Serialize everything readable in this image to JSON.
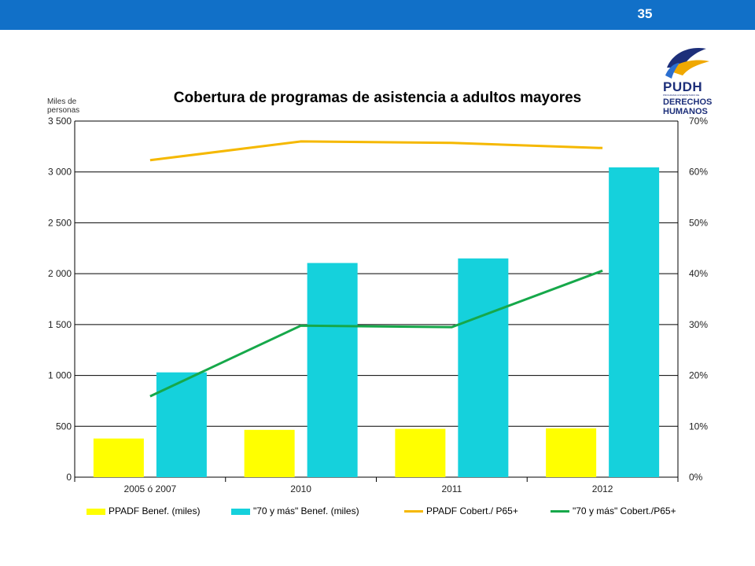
{
  "header": {
    "page_number": "35"
  },
  "logo": {
    "line1": "PUDH",
    "line2": "PROGRAMA UNIVERSITARIO DE",
    "line3": "DERECHOS",
    "line4": "HUMANOS"
  },
  "chart_data": {
    "type": "bar",
    "title": "Cobertura de programas de asistencia a adultos mayores",
    "y_unit_label": "Miles de personas",
    "categories": [
      "2005 ó 2007",
      "2010",
      "2011",
      "2012"
    ],
    "ylim": [
      0,
      3500
    ],
    "y_ticks": [
      "0",
      "500",
      "1 000",
      "1 500",
      "2 000",
      "2 500",
      "3 000",
      "3 500"
    ],
    "y2lim": [
      0,
      70
    ],
    "y2_ticks": [
      "0%",
      "10%",
      "20%",
      "30%",
      "40%",
      "50%",
      "60%",
      "70%"
    ],
    "grid": true,
    "legend_position": "bottom",
    "series": [
      {
        "name": "PPADF Benef. (miles)",
        "kind": "bar",
        "axis": "left",
        "color": "#ffff00",
        "values": [
          380,
          465,
          475,
          480
        ]
      },
      {
        "name": "\"70 y más\" Benef. (miles)",
        "kind": "bar",
        "axis": "left",
        "color": "#15d1dc",
        "values": [
          1030,
          2105,
          2150,
          3045
        ]
      },
      {
        "name": "PPADF Cobert./ P65+",
        "kind": "line",
        "axis": "right",
        "color": "#f5b800",
        "values": [
          62.3,
          66.0,
          65.7,
          64.7
        ]
      },
      {
        "name": "\"70 y más\" Cobert./P65+",
        "kind": "line",
        "axis": "right",
        "color": "#16a84a",
        "values": [
          15.9,
          29.8,
          29.5,
          40.6
        ]
      }
    ]
  }
}
